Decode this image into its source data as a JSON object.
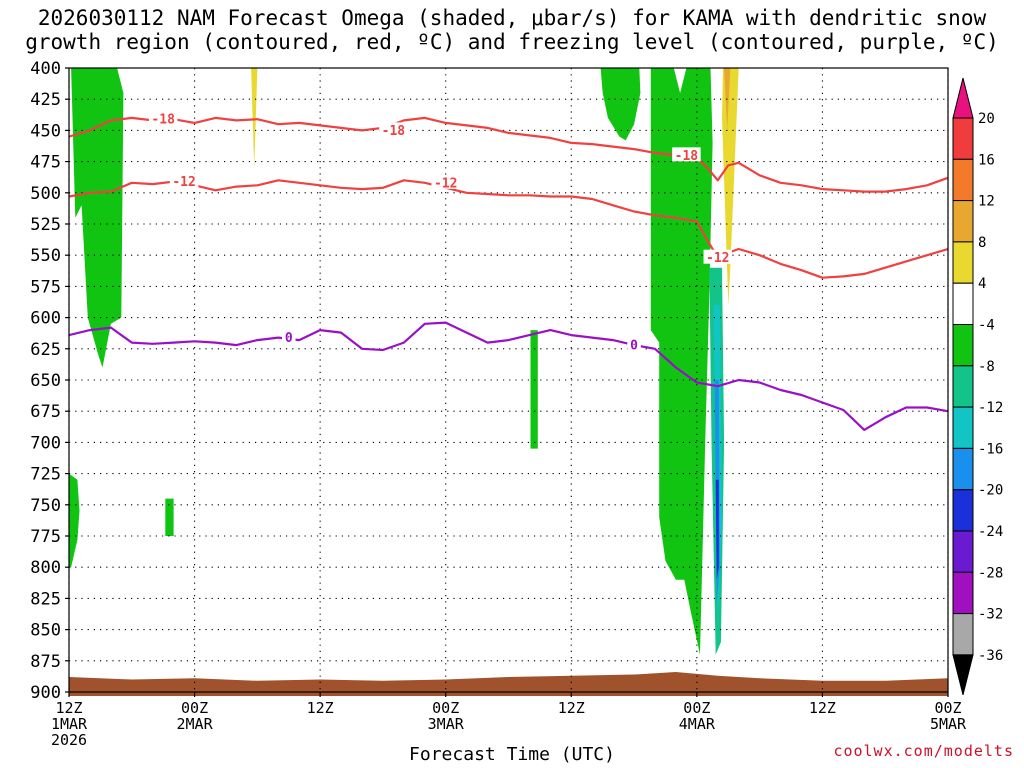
{
  "title_line1": "2026030112 NAM Forecast Omega (shaded, μbar/s) for KAMA with dendritic snow",
  "title_line2": "growth region (contoured, red, ºC) and freezing level (contoured, purple, ºC)",
  "credit": "coolwx.com/modelts",
  "chart_data": {
    "type": "heatmap",
    "xlabel": "Forecast Time (UTC)",
    "ylabel": "",
    "x_range_hours": [
      0,
      84
    ],
    "y_range_mb": [
      900,
      400
    ],
    "y_ticks": [
      400,
      425,
      450,
      475,
      500,
      525,
      550,
      575,
      600,
      625,
      650,
      675,
      700,
      725,
      750,
      775,
      800,
      825,
      850,
      875,
      900
    ],
    "x_ticks": [
      {
        "hour": 0,
        "lines": [
          "12Z",
          "1MAR",
          "2026"
        ]
      },
      {
        "hour": 12,
        "lines": [
          "00Z",
          "2MAR"
        ]
      },
      {
        "hour": 24,
        "lines": [
          "12Z"
        ]
      },
      {
        "hour": 36,
        "lines": [
          "00Z",
          "3MAR"
        ]
      },
      {
        "hour": 48,
        "lines": [
          "12Z"
        ]
      },
      {
        "hour": 60,
        "lines": [
          "00Z",
          "4MAR"
        ]
      },
      {
        "hour": 72,
        "lines": [
          "12Z"
        ]
      },
      {
        "hour": 84,
        "lines": [
          "00Z",
          "5MAR"
        ]
      }
    ],
    "grid": true,
    "colorbar": {
      "labels": [
        "20",
        "16",
        "12",
        "8",
        "4",
        "-4",
        "-8",
        "-12",
        "-16",
        "-20",
        "-24",
        "-28",
        "-32",
        "-36"
      ],
      "colors_top_to_bottom": [
        "#e8127f",
        "#f03c3c",
        "#f27a2a",
        "#e8a830",
        "#e8d830",
        "#ffffff",
        "#12c412",
        "#12c48a",
        "#12c4c4",
        "#1a90ee",
        "#1a30d8",
        "#6a1ad0",
        "#a010c0",
        "#a8a8a8",
        "#000000"
      ]
    },
    "terrain_color": "#a0522d",
    "series": [
      {
        "name": "-18",
        "color": "#f04040",
        "x": [
          0,
          2,
          4,
          6,
          8,
          10,
          12,
          14,
          16,
          18,
          20,
          22,
          24,
          26,
          28,
          30,
          32,
          34,
          36,
          38,
          40,
          42,
          44,
          46,
          48,
          50,
          52,
          54,
          56,
          58,
          60,
          61,
          62,
          63,
          64,
          66,
          68,
          70,
          72,
          74,
          76,
          78,
          80,
          82,
          84
        ],
        "y": [
          455,
          450,
          442,
          440,
          442,
          441,
          444,
          440,
          442,
          441,
          445,
          444,
          446,
          448,
          450,
          448,
          442,
          440,
          444,
          446,
          448,
          452,
          454,
          456,
          460,
          461,
          463,
          465,
          468,
          470,
          472,
          480,
          490,
          478,
          476,
          486,
          492,
          494,
          497,
          498,
          499,
          499,
          497,
          494,
          488
        ]
      },
      {
        "name": "-12",
        "color": "#f04040",
        "x": [
          0,
          2,
          4,
          6,
          8,
          10,
          12,
          14,
          16,
          18,
          20,
          22,
          24,
          26,
          28,
          30,
          32,
          34,
          36,
          38,
          40,
          42,
          44,
          46,
          48,
          50,
          52,
          54,
          56,
          58,
          60,
          61,
          62,
          63,
          64,
          66,
          68,
          70,
          72,
          74,
          76,
          78,
          80,
          82,
          84
        ],
        "y": [
          503,
          500,
          499,
          492,
          493,
          491,
          494,
          498,
          495,
          494,
          490,
          492,
          494,
          496,
          497,
          496,
          490,
          492,
          496,
          500,
          501,
          502,
          502,
          503,
          503,
          505,
          510,
          515,
          518,
          520,
          523,
          538,
          552,
          548,
          545,
          550,
          557,
          562,
          568,
          567,
          565,
          560,
          555,
          550,
          545
        ]
      },
      {
        "name": "0",
        "color": "#9a10c8",
        "x": [
          0,
          2,
          4,
          6,
          8,
          10,
          12,
          14,
          16,
          18,
          20,
          22,
          24,
          26,
          28,
          30,
          32,
          34,
          36,
          38,
          40,
          42,
          44,
          46,
          48,
          50,
          52,
          54,
          56,
          58,
          60,
          62,
          64,
          66,
          68,
          70,
          72,
          74,
          76,
          78,
          80,
          82,
          84
        ],
        "y": [
          614,
          610,
          608,
          620,
          621,
          620,
          619,
          620,
          622,
          618,
          616,
          618,
          610,
          612,
          625,
          626,
          620,
          605,
          604,
          612,
          620,
          618,
          614,
          610,
          614,
          616,
          618,
          622,
          625,
          640,
          652,
          655,
          650,
          652,
          658,
          662,
          668,
          674,
          690,
          680,
          672,
          672,
          675
        ]
      }
    ],
    "contour_labels": [
      {
        "text": "-18",
        "x": 9,
        "y": 441
      },
      {
        "text": "-18",
        "x": 31,
        "y": 450
      },
      {
        "text": "-18",
        "x": 59,
        "y": 470
      },
      {
        "text": "-12",
        "x": 11,
        "y": 491
      },
      {
        "text": "-12",
        "x": 36,
        "y": 492
      },
      {
        "text": "-12",
        "x": 62,
        "y": 552
      },
      {
        "text": "0",
        "x": 21,
        "y": 616
      },
      {
        "text": "0",
        "x": 54,
        "y": 622
      }
    ],
    "omega_regions": [
      {
        "band": "-4 to -8",
        "color": "#12c412",
        "x": [
          0.2,
          0.8,
          1.5,
          2.5,
          3.5,
          4.6,
          5.2,
          5.0,
          4.0,
          3.2,
          2.8,
          1.8,
          1.2,
          0.6
        ],
        "y": [
          400,
          400,
          400,
          400,
          400,
          400,
          420,
          600,
          605,
          640,
          630,
          600,
          510,
          520
        ]
      },
      {
        "band": "-4 to -8",
        "color": "#12c412",
        "x": [
          0,
          0.8,
          1.0,
          0.8,
          0.2,
          0
        ],
        "y": [
          725,
          730,
          755,
          778,
          800,
          800
        ]
      },
      {
        "band": "-4 to -8",
        "color": "#12c412",
        "x": [
          9.2,
          10.0,
          10.0,
          9.2
        ],
        "y": [
          745,
          745,
          775,
          775
        ]
      },
      {
        "band": "-4 to -8",
        "color": "#12c412",
        "x": [
          44.1,
          44.8,
          44.8,
          44.1
        ],
        "y": [
          610,
          610,
          705,
          705
        ]
      },
      {
        "band": "-4 to -8",
        "color": "#12c412",
        "x": [
          50.8,
          52.0,
          53.0,
          54.5,
          54.6,
          54.0,
          53.2,
          52.6,
          51.5,
          51.0
        ],
        "y": [
          400,
          400,
          400,
          400,
          420,
          445,
          458,
          455,
          440,
          420
        ]
      },
      {
        "band": "-4 to -8",
        "color": "#12c412",
        "x": [
          55.6,
          57.8,
          58.4,
          59.0,
          60.2,
          61.3,
          61.5,
          61.2,
          60.8,
          60.3,
          59.4,
          58.8,
          58.0,
          57.0,
          56.4,
          56.4,
          55.6
        ],
        "y": [
          400,
          400,
          420,
          400,
          400,
          400,
          460,
          580,
          700,
          870,
          835,
          810,
          810,
          795,
          760,
          620,
          610
        ]
      },
      {
        "band": "4 to 8",
        "color": "#e8d830",
        "x": [
          17.4,
          18.0,
          17.7
        ],
        "y": [
          400,
          400,
          480
        ]
      },
      {
        "band": "4 to 8",
        "color": "#e8d830",
        "x": [
          62.5,
          64.0,
          63.6,
          63.2,
          63.0,
          62.4
        ],
        "y": [
          400,
          400,
          480,
          560,
          590,
          440
        ]
      },
      {
        "band": "8 to 12",
        "color": "#e8a830",
        "x": [
          62.6,
          63.2,
          62.9
        ],
        "y": [
          400,
          400,
          450
        ]
      },
      {
        "band": "-8 to -12",
        "color": "#12c48a",
        "x": [
          61.2,
          62.4,
          62.6,
          62.3,
          61.8,
          61.4
        ],
        "y": [
          560,
          560,
          700,
          860,
          870,
          700
        ]
      },
      {
        "band": "-12 to -16",
        "color": "#12c4c4",
        "x": [
          61.6,
          62.2,
          62.4,
          62.0,
          61.8
        ],
        "y": [
          590,
          590,
          760,
          850,
          720
        ]
      },
      {
        "band": "-16 to -20",
        "color": "#1a90ee",
        "x": [
          61.7,
          62.1,
          62.2,
          61.9
        ],
        "y": [
          650,
          650,
          800,
          830
        ]
      },
      {
        "band": "-20 to -24",
        "color": "#1a30d8",
        "x": [
          61.8,
          62.1,
          62.1,
          61.9
        ],
        "y": [
          730,
          730,
          800,
          810
        ]
      }
    ],
    "terrain_top_mb": [
      {
        "x": 0,
        "y": 888
      },
      {
        "x": 6,
        "y": 890
      },
      {
        "x": 12,
        "y": 889
      },
      {
        "x": 18,
        "y": 891
      },
      {
        "x": 24,
        "y": 890
      },
      {
        "x": 30,
        "y": 891
      },
      {
        "x": 36,
        "y": 890
      },
      {
        "x": 42,
        "y": 888
      },
      {
        "x": 48,
        "y": 887
      },
      {
        "x": 54,
        "y": 886
      },
      {
        "x": 58,
        "y": 884
      },
      {
        "x": 62,
        "y": 887
      },
      {
        "x": 66,
        "y": 889
      },
      {
        "x": 72,
        "y": 891
      },
      {
        "x": 78,
        "y": 891
      },
      {
        "x": 84,
        "y": 889
      }
    ]
  }
}
